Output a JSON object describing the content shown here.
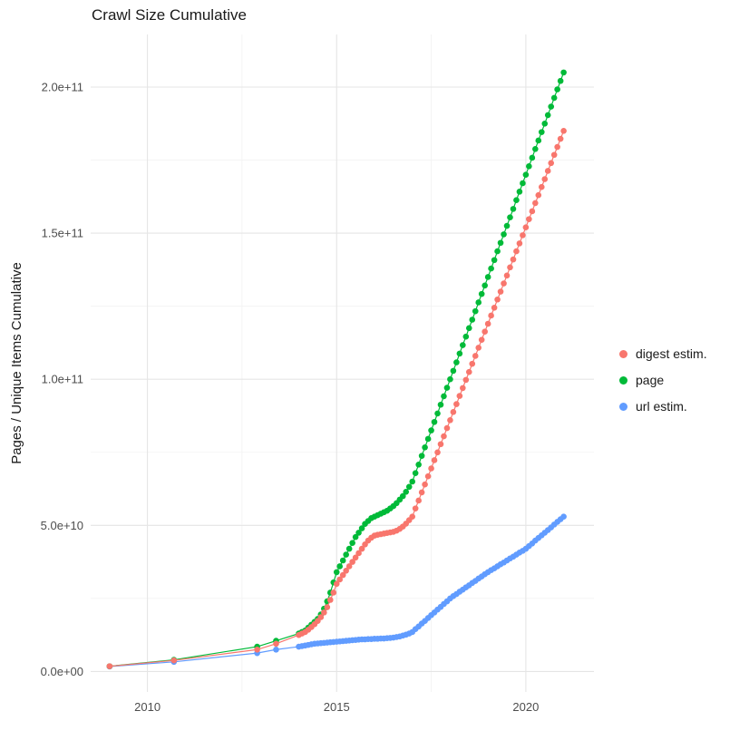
{
  "chart_data": {
    "type": "scatter",
    "title": "Crawl Size Cumulative",
    "xlabel": "",
    "ylabel": "Pages / Unique Items Cumulative",
    "legend_position": "right",
    "grid": true,
    "y_unit_multiplier": 1000000000.0,
    "xlim": [
      2008.5,
      2021.8
    ],
    "ylim_billions": [
      -7,
      218
    ],
    "x_ticks": [
      {
        "value": 2010,
        "label": "2010"
      },
      {
        "value": 2015,
        "label": "2015"
      },
      {
        "value": 2020,
        "label": "2020"
      }
    ],
    "y_ticks": [
      {
        "value": 0,
        "label": "0.0e+00"
      },
      {
        "value": 50,
        "label": "5.0e+10"
      },
      {
        "value": 100,
        "label": "1.0e+11"
      },
      {
        "value": 150,
        "label": "1.5e+11"
      },
      {
        "value": 200,
        "label": "2.0e+11"
      }
    ],
    "x_minor": [
      2012.5,
      2017.5
    ],
    "y_minor": [
      25,
      75,
      125,
      175
    ],
    "x": [
      2009.0,
      2010.7,
      2012.9,
      2013.4,
      2014.0,
      2014.083,
      2014.167,
      2014.25,
      2014.333,
      2014.417,
      2014.5,
      2014.583,
      2014.667,
      2014.75,
      2014.833,
      2014.917,
      2015.0,
      2015.083,
      2015.167,
      2015.25,
      2015.333,
      2015.417,
      2015.5,
      2015.583,
      2015.667,
      2015.75,
      2015.833,
      2015.917,
      2016.0,
      2016.083,
      2016.167,
      2016.25,
      2016.333,
      2016.417,
      2016.5,
      2016.583,
      2016.667,
      2016.75,
      2016.833,
      2016.917,
      2017.0,
      2017.083,
      2017.167,
      2017.25,
      2017.333,
      2017.417,
      2017.5,
      2017.583,
      2017.667,
      2017.75,
      2017.833,
      2017.917,
      2018.0,
      2018.083,
      2018.167,
      2018.25,
      2018.333,
      2018.417,
      2018.5,
      2018.583,
      2018.667,
      2018.75,
      2018.833,
      2018.917,
      2019.0,
      2019.083,
      2019.167,
      2019.25,
      2019.333,
      2019.417,
      2019.5,
      2019.583,
      2019.667,
      2019.75,
      2019.833,
      2019.917,
      2020.0,
      2020.083,
      2020.167,
      2020.25,
      2020.333,
      2020.417,
      2020.5,
      2020.583,
      2020.667,
      2020.75,
      2020.833,
      2020.917,
      2021.0
    ],
    "series": [
      {
        "name": "digest estim.",
        "color": "#F8766D",
        "values_billions": [
          1.8,
          3.8,
          7.5,
          9.5,
          12.5,
          13,
          13.5,
          14.3,
          15.2,
          16.2,
          17.3,
          18.6,
          20.2,
          22,
          24.5,
          27,
          30,
          31.5,
          33,
          34.5,
          36,
          37.5,
          39,
          40.5,
          42,
          43.5,
          44.8,
          45.8,
          46.5,
          46.8,
          47,
          47.2,
          47.4,
          47.6,
          47.8,
          48.2,
          48.8,
          49.6,
          50.6,
          51.8,
          53,
          55.8,
          58.5,
          61.3,
          64,
          66.8,
          69.5,
          72.3,
          75,
          77.8,
          80.5,
          83.3,
          86,
          88.8,
          91.5,
          94.3,
          97,
          99.8,
          102.5,
          105.3,
          108,
          110.8,
          113.5,
          116.3,
          119,
          121.8,
          124.5,
          127.3,
          130,
          132.8,
          135.5,
          138.3,
          141,
          143.8,
          146.5,
          149.3,
          152,
          154.8,
          157.5,
          160.3,
          163,
          165.8,
          168.5,
          171.3,
          174,
          176.8,
          179.5,
          182.3,
          185
        ]
      },
      {
        "name": "page",
        "color": "#00BA38",
        "values_billions": [
          1.8,
          4,
          8.5,
          10.5,
          13,
          13.5,
          14,
          15,
          16,
          17,
          18,
          19.5,
          21.5,
          24,
          27,
          30.5,
          34,
          36,
          38,
          40,
          42,
          44,
          46,
          47.5,
          49,
          50.5,
          51.5,
          52.5,
          53,
          53.5,
          54,
          54.5,
          55,
          55.8,
          56.6,
          57.6,
          58.8,
          60,
          61.5,
          63.2,
          65,
          67.9,
          70.8,
          73.8,
          76.7,
          79.6,
          82.5,
          85.4,
          88.3,
          91.3,
          94.2,
          97.1,
          100,
          102.9,
          105.8,
          108.8,
          111.7,
          114.6,
          117.5,
          120.4,
          123.3,
          126.3,
          129.2,
          132.1,
          135,
          137.9,
          140.8,
          143.8,
          146.7,
          149.6,
          152.5,
          155.4,
          158.3,
          161.3,
          164.2,
          167.1,
          170,
          172.9,
          175.8,
          178.8,
          181.7,
          184.6,
          187.5,
          190.4,
          193.3,
          196.3,
          199.2,
          202.1,
          205
        ]
      },
      {
        "name": "url estim.",
        "color": "#619CFF",
        "values_billions": [
          1.7,
          3.3,
          6.3,
          7.5,
          8.5,
          8.7,
          8.9,
          9.1,
          9.3,
          9.5,
          9.6,
          9.7,
          9.8,
          9.9,
          10,
          10.1,
          10.2,
          10.3,
          10.4,
          10.5,
          10.6,
          10.7,
          10.8,
          10.9,
          11,
          11,
          11.1,
          11.1,
          11.2,
          11.2,
          11.3,
          11.3,
          11.4,
          11.5,
          11.6,
          11.8,
          12,
          12.3,
          12.6,
          13,
          13.5,
          14.5,
          15.4,
          16.4,
          17.3,
          18.3,
          19.3,
          20.2,
          21.2,
          22.1,
          23.1,
          24,
          25,
          25.8,
          26.5,
          27.3,
          28,
          28.8,
          29.5,
          30.3,
          31,
          31.8,
          32.5,
          33.3,
          34,
          34.7,
          35.3,
          36,
          36.7,
          37.3,
          38,
          38.7,
          39.3,
          40,
          40.7,
          41.3,
          42,
          42.9,
          43.8,
          44.8,
          45.7,
          46.6,
          47.5,
          48.4,
          49.3,
          50.3,
          51.2,
          52.1,
          53
        ]
      }
    ],
    "style": {
      "grid_major_color": "#e5e5e5",
      "grid_minor_color": "#f2f2f2",
      "point_radius": 3.3,
      "line_width": 1.2
    }
  }
}
